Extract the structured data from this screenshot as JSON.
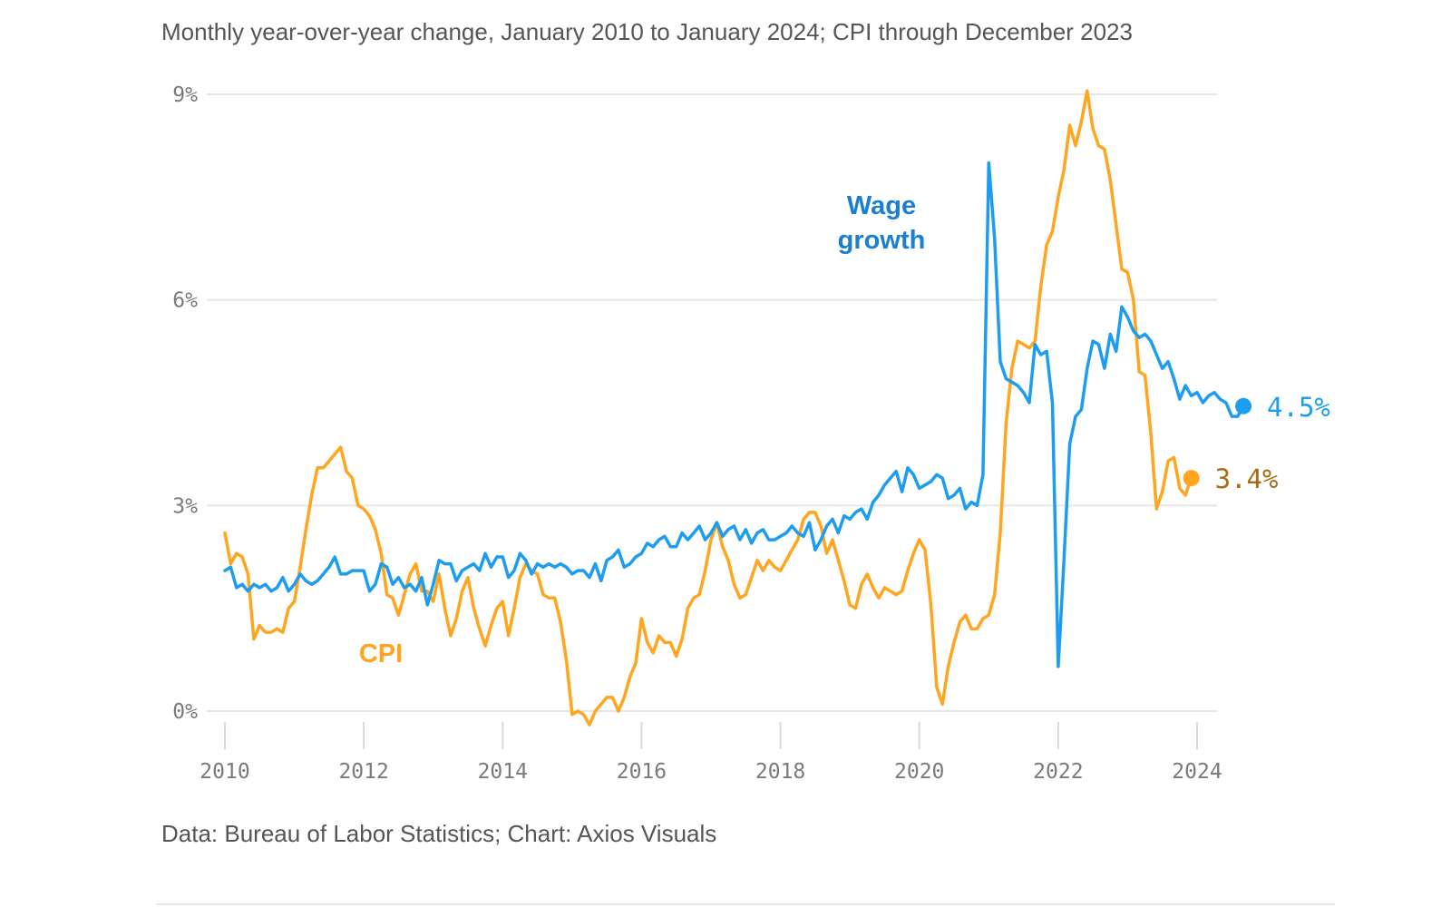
{
  "subtitle": "Monthly year-over-year change, January 2010 to January 2024; CPI through December 2023",
  "source": "Data: Bureau of Labor Statistics; Chart: Axios Visuals",
  "colors": {
    "wage": "#1e9cf0",
    "cpi": "#ffa51f",
    "wage_label": "#1a7fd0",
    "cpi_end_label": "#a86a12",
    "grid": "#e6e6e6"
  },
  "chart_data": {
    "type": "line",
    "x_start": "2010-01",
    "xlim": [
      2010,
      2024
    ],
    "ylim": [
      0,
      9
    ],
    "yticks": [
      0,
      3,
      6,
      9
    ],
    "ytick_labels": [
      "0%",
      "3%",
      "6%",
      "9%"
    ],
    "xticks": [
      2010,
      2012,
      2014,
      2016,
      2018,
      2020,
      2022,
      2024
    ],
    "xtick_labels": [
      "2010",
      "2012",
      "2014",
      "2016",
      "2018",
      "2020",
      "2022",
      "2024"
    ],
    "grid": "horizontal",
    "series": [
      {
        "name": "Wage growth",
        "end_label": "4.5%",
        "values": [
          2.05,
          2.1,
          1.8,
          1.85,
          1.75,
          1.85,
          1.8,
          1.85,
          1.75,
          1.8,
          1.95,
          1.75,
          1.85,
          2.0,
          1.9,
          1.85,
          1.9,
          2.0,
          2.1,
          2.25,
          2.0,
          2.0,
          2.05,
          2.05,
          2.05,
          1.75,
          1.85,
          2.15,
          2.1,
          1.85,
          1.95,
          1.8,
          1.85,
          1.75,
          1.95,
          1.55,
          1.85,
          2.2,
          2.15,
          2.15,
          1.9,
          2.05,
          2.1,
          2.15,
          2.05,
          2.3,
          2.1,
          2.25,
          2.25,
          1.95,
          2.05,
          2.3,
          2.2,
          2.0,
          2.15,
          2.1,
          2.15,
          2.1,
          2.15,
          2.1,
          2.0,
          2.05,
          2.05,
          1.95,
          2.15,
          1.9,
          2.2,
          2.25,
          2.35,
          2.1,
          2.15,
          2.25,
          2.3,
          2.45,
          2.4,
          2.5,
          2.55,
          2.4,
          2.4,
          2.6,
          2.5,
          2.6,
          2.7,
          2.5,
          2.6,
          2.75,
          2.55,
          2.65,
          2.7,
          2.5,
          2.65,
          2.45,
          2.6,
          2.65,
          2.5,
          2.5,
          2.55,
          2.6,
          2.7,
          2.6,
          2.55,
          2.75,
          2.35,
          2.5,
          2.7,
          2.8,
          2.6,
          2.85,
          2.8,
          2.9,
          2.95,
          2.8,
          3.05,
          3.15,
          3.3,
          3.4,
          3.5,
          3.2,
          3.55,
          3.45,
          3.25,
          3.3,
          3.35,
          3.45,
          3.4,
          3.1,
          3.15,
          3.25,
          2.95,
          3.05,
          3.0,
          3.45,
          8.0,
          6.9,
          5.1,
          4.85,
          4.8,
          4.75,
          4.65,
          4.5,
          5.35,
          5.2,
          5.25,
          4.5,
          0.65,
          2.2,
          3.9,
          4.3,
          4.4,
          5.0,
          5.4,
          5.35,
          5.0,
          5.5,
          5.25,
          5.9,
          5.75,
          5.55,
          5.45,
          5.5,
          5.4,
          5.2,
          5.0,
          5.1,
          4.85,
          4.55,
          4.75,
          4.6,
          4.65,
          4.5,
          4.6,
          4.65,
          4.55,
          4.5,
          4.3,
          4.3,
          4.45
        ]
      },
      {
        "name": "CPI",
        "end_label": "3.4%",
        "values": [
          2.6,
          2.15,
          2.3,
          2.25,
          2.0,
          1.05,
          1.25,
          1.15,
          1.15,
          1.2,
          1.15,
          1.5,
          1.6,
          2.1,
          2.65,
          3.15,
          3.55,
          3.55,
          3.65,
          3.75,
          3.85,
          3.5,
          3.4,
          3.0,
          2.95,
          2.85,
          2.65,
          2.3,
          1.7,
          1.65,
          1.4,
          1.7,
          2.0,
          2.15,
          1.75,
          1.75,
          1.6,
          2.0,
          1.5,
          1.1,
          1.35,
          1.75,
          1.95,
          1.5,
          1.2,
          0.95,
          1.25,
          1.5,
          1.6,
          1.1,
          1.5,
          1.95,
          2.15,
          2.05,
          2.0,
          1.7,
          1.65,
          1.65,
          1.3,
          0.75,
          -0.05,
          0.0,
          -0.05,
          -0.2,
          0.0,
          0.1,
          0.2,
          0.2,
          0.0,
          0.2,
          0.5,
          0.7,
          1.35,
          1.0,
          0.85,
          1.1,
          1.0,
          1.0,
          0.8,
          1.05,
          1.5,
          1.65,
          1.7,
          2.05,
          2.5,
          2.75,
          2.4,
          2.2,
          1.85,
          1.65,
          1.7,
          1.95,
          2.2,
          2.05,
          2.2,
          2.1,
          2.05,
          2.2,
          2.35,
          2.5,
          2.8,
          2.9,
          2.9,
          2.7,
          2.3,
          2.5,
          2.2,
          1.9,
          1.55,
          1.5,
          1.85,
          2.0,
          1.8,
          1.65,
          1.8,
          1.75,
          1.7,
          1.75,
          2.05,
          2.3,
          2.5,
          2.35,
          1.55,
          0.35,
          0.1,
          0.65,
          1.0,
          1.3,
          1.4,
          1.2,
          1.2,
          1.35,
          1.4,
          1.7,
          2.6,
          4.2,
          5.0,
          5.4,
          5.35,
          5.3,
          5.4,
          6.2,
          6.8,
          7.0,
          7.5,
          7.9,
          8.55,
          8.25,
          8.6,
          9.05,
          8.5,
          8.25,
          8.2,
          7.75,
          7.1,
          6.45,
          6.4,
          6.0,
          4.95,
          4.9,
          4.05,
          2.95,
          3.2,
          3.65,
          3.7,
          3.25,
          3.15,
          3.4
        ]
      }
    ],
    "annotations": [
      {
        "text": "Wage growth",
        "series": "Wage growth"
      },
      {
        "text": "CPI",
        "series": "CPI"
      }
    ]
  }
}
